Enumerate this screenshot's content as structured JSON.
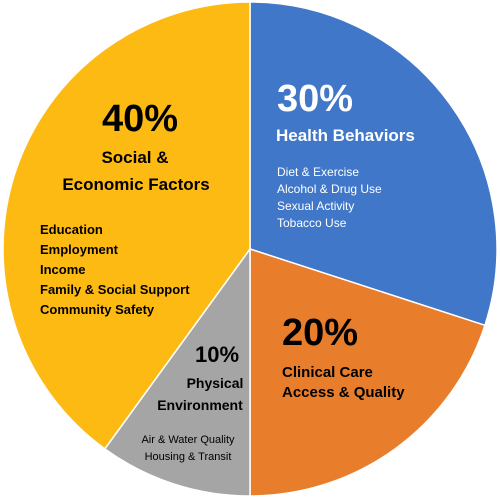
{
  "chart_data": {
    "type": "pie",
    "slices": [
      {
        "label": "Health Behaviors",
        "value": 30,
        "pct_label": "30%",
        "color": "#4077C9",
        "items": [
          "Diet & Exercise",
          "Alcohol & Drug Use",
          "Sexual Activity",
          "Tobacco Use"
        ]
      },
      {
        "label": "Clinical Care Access & Quality",
        "title_lines": [
          "Clinical Care",
          "Access & Quality"
        ],
        "value": 20,
        "pct_label": "20%",
        "color": "#E87E2C",
        "items": []
      },
      {
        "label": "Physical Environment",
        "title_lines": [
          "Physical",
          "Environment"
        ],
        "value": 10,
        "pct_label": "10%",
        "color": "#A5A5A5",
        "items": [
          "Air & Water Quality",
          "Housing & Transit"
        ]
      },
      {
        "label": "Social & Economic Factors",
        "title_lines": [
          "Social &",
          "Economic Factors"
        ],
        "value": 40,
        "pct_label": "40%",
        "color": "#FDBA12",
        "items": [
          "Education",
          "Employment",
          "Income",
          "Family & Social Support",
          "Community Safety"
        ]
      }
    ]
  }
}
